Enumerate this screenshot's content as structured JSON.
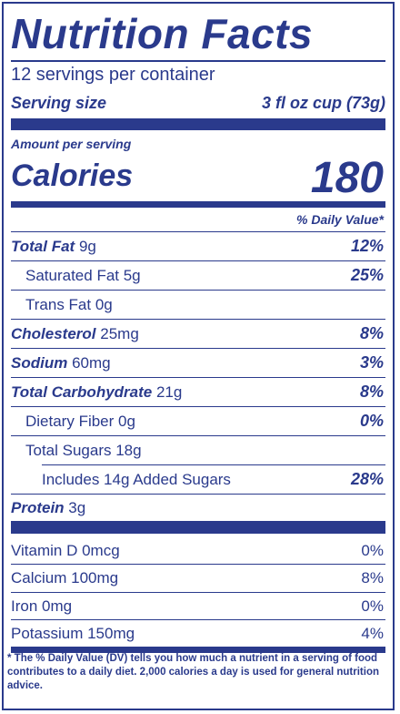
{
  "title": "Nutrition Facts",
  "servings_per_container": "12 servings per container",
  "serving_size": {
    "label": "Serving size",
    "value": "3 fl oz cup (73g)"
  },
  "amount_per_serving": "Amount per serving",
  "calories": {
    "label": "Calories",
    "value": "180"
  },
  "daily_value_header": "% Daily Value*",
  "nutrients": [
    {
      "name": "Total Fat",
      "amount": "9g",
      "dv": "12%"
    },
    {
      "name": "Saturated Fat 5g",
      "dv": "25%"
    },
    {
      "name": "Trans Fat 0g",
      "dv": ""
    },
    {
      "name": "Cholesterol",
      "amount": "25mg",
      "dv": "8%"
    },
    {
      "name": "Sodium",
      "amount": "60mg",
      "dv": "3%"
    },
    {
      "name": "Total Carbohydrate",
      "amount": "21g",
      "dv": "8%"
    },
    {
      "name": "Dietary Fiber 0g",
      "dv": "0%"
    },
    {
      "name": "Total Sugars 18g",
      "dv": ""
    },
    {
      "name": "Includes 14g Added Sugars",
      "dv": "28%"
    },
    {
      "name": "Protein",
      "amount": "3g",
      "dv": ""
    }
  ],
  "vitamins": [
    {
      "name": "Vitamin D 0mcg",
      "dv": "0%"
    },
    {
      "name": "Calcium 100mg",
      "dv": "8%"
    },
    {
      "name": "Iron 0mg",
      "dv": "0%"
    },
    {
      "name": "Potassium 150mg",
      "dv": "4%"
    }
  ],
  "footnote": "* The % Daily Value (DV) tells you how much a nutrient in a serving of food contributes to a daily diet. 2,000 calories a day is used for general nutrition advice.",
  "colors": {
    "ink": "#2a3a8c",
    "background": "#ffffff"
  }
}
